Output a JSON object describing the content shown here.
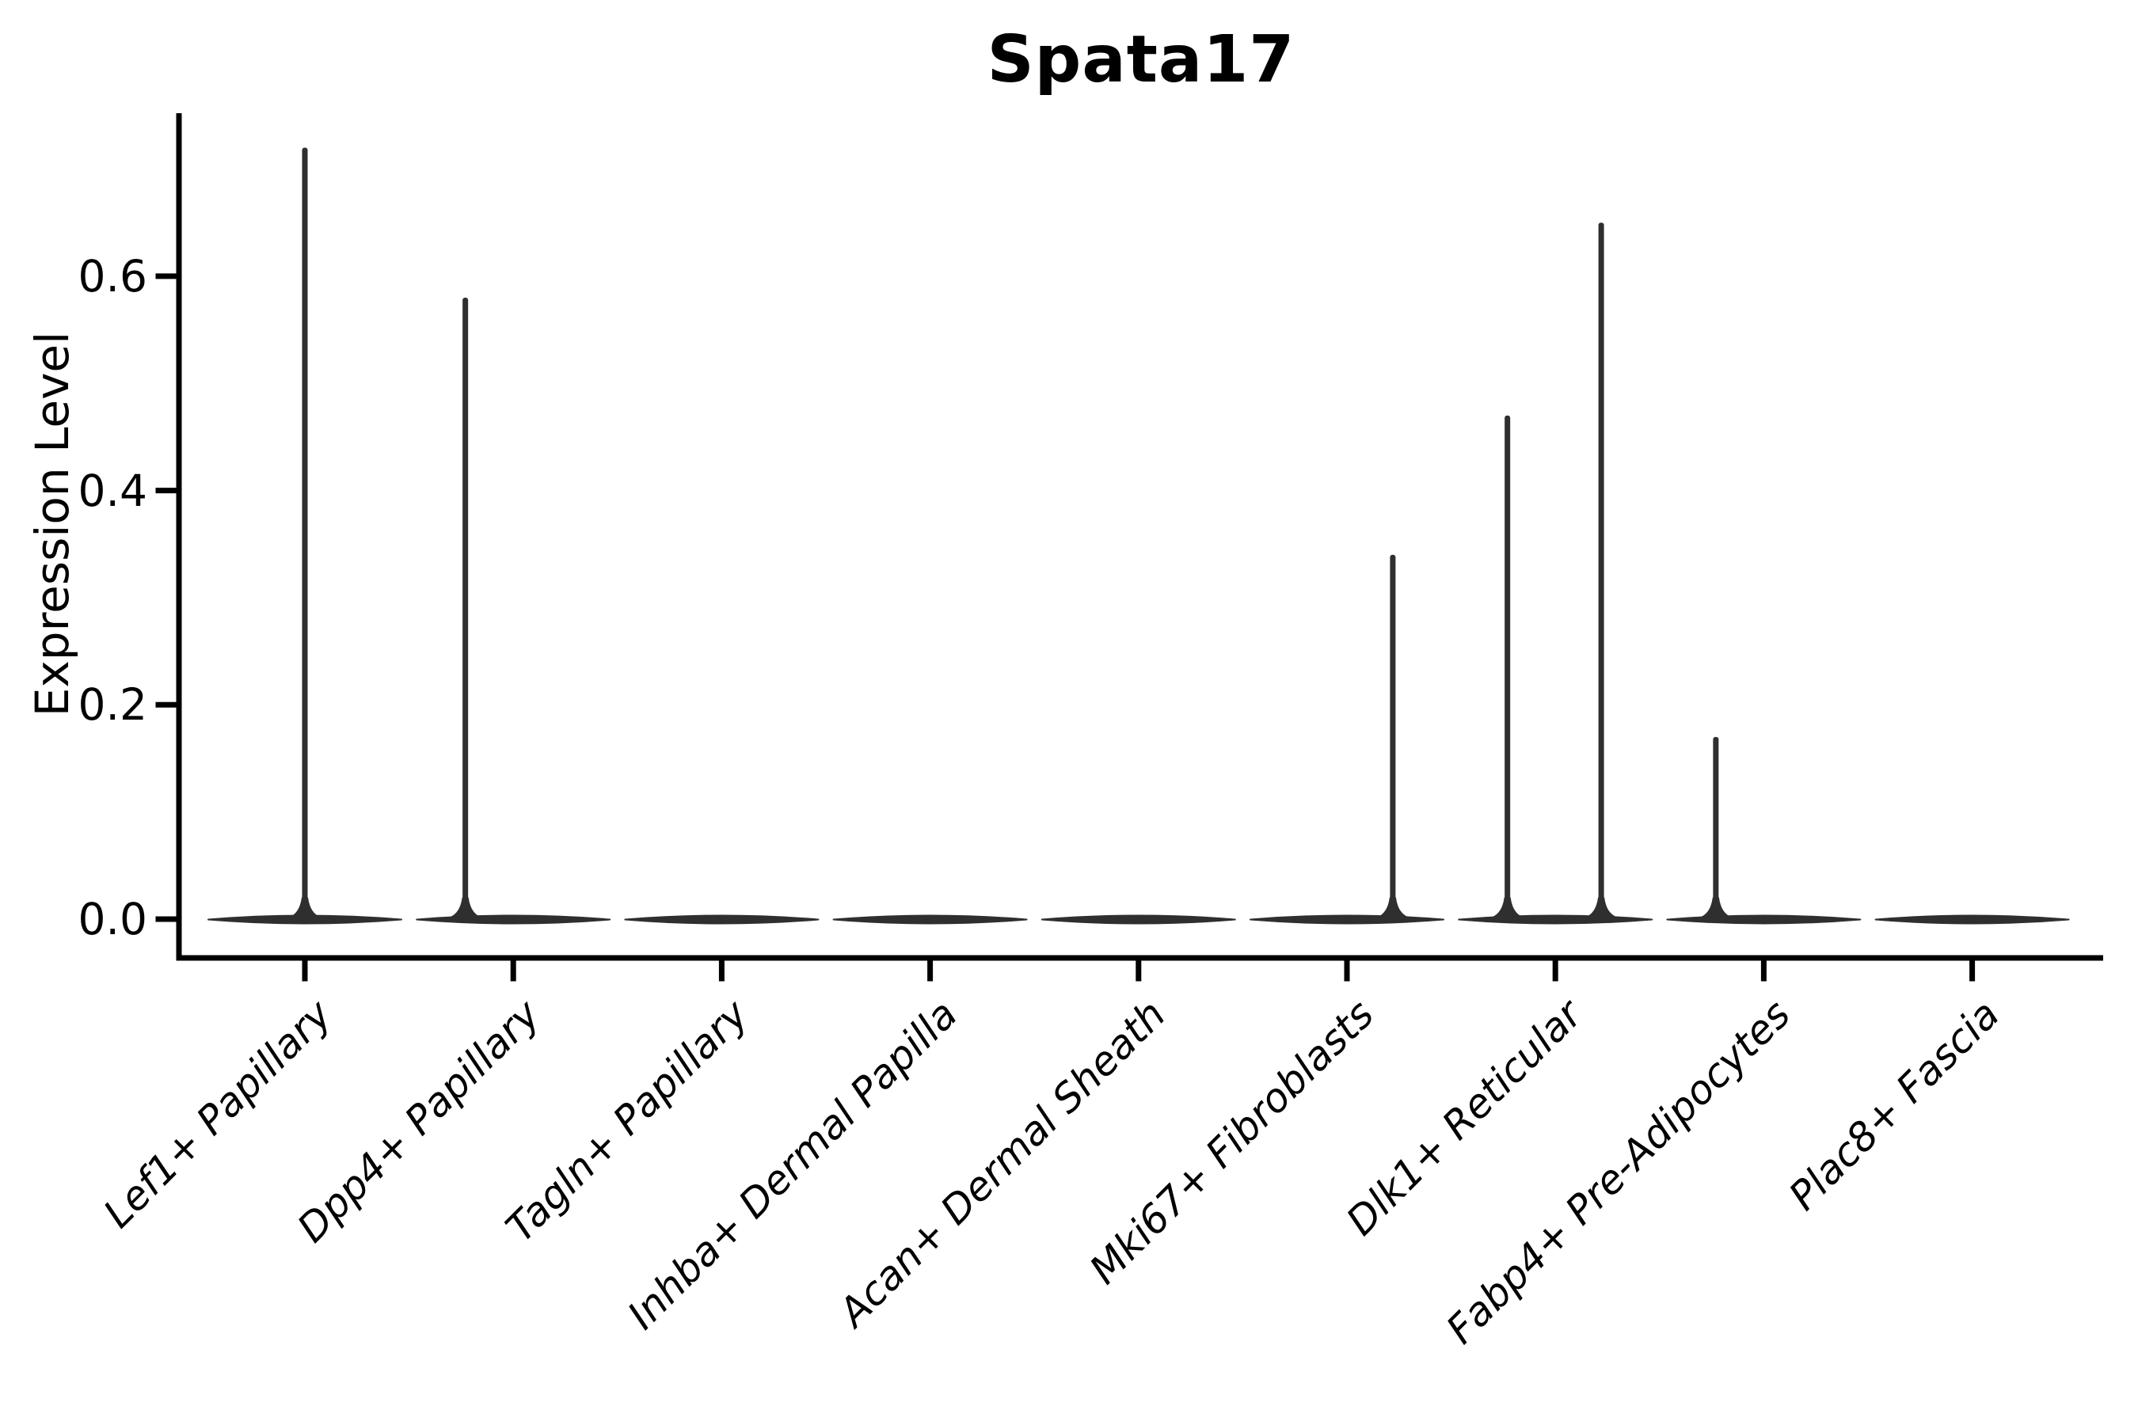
{
  "title": "Spata17",
  "colors": {
    "violin_fill": "#2f2f2f",
    "axis": "#000000",
    "text": "#000000",
    "background": "#ffffff"
  },
  "chart_data": {
    "type": "violin",
    "title": "Spata17",
    "xlabel": "",
    "ylabel": "Expression Level",
    "ylim": [
      -0.036,
      0.75
    ],
    "yticks": [
      0.0,
      0.2,
      0.4,
      0.6
    ],
    "ytick_labels": [
      "0.0",
      "0.2",
      "0.4",
      "0.6"
    ],
    "grid": false,
    "legend": null,
    "categories": [
      "Lef1+ Papillary",
      "Dpp4+ Papillary",
      "Tagln+ Papillary",
      "Inhba+ Dermal Papilla",
      "Acan+ Dermal Sheath",
      "Mki67+ Fibroblasts",
      "Dlk1+ Reticular",
      "Fabp4+ Pre-Adipocytes",
      "Plac8+ Fascia"
    ],
    "violins": [
      {
        "category": "Lef1+ Papillary",
        "baseline_value": 0.0,
        "max_expression": 0.72,
        "spikes": [
          {
            "x_offset_frac": 0.0,
            "max": 0.72
          }
        ]
      },
      {
        "category": "Dpp4+ Papillary",
        "baseline_value": 0.0,
        "max_expression": 0.58,
        "spikes": [
          {
            "x_offset_frac": -0.23,
            "max": 0.58
          }
        ]
      },
      {
        "category": "Tagln+ Papillary",
        "baseline_value": 0.0,
        "max_expression": 0.0,
        "spikes": []
      },
      {
        "category": "Inhba+ Dermal Papilla",
        "baseline_value": 0.0,
        "max_expression": 0.0,
        "spikes": []
      },
      {
        "category": "Acan+ Dermal Sheath",
        "baseline_value": 0.0,
        "max_expression": 0.0,
        "spikes": []
      },
      {
        "category": "Mki67+ Fibroblasts",
        "baseline_value": 0.0,
        "max_expression": 0.34,
        "spikes": [
          {
            "x_offset_frac": 0.22,
            "max": 0.34
          }
        ]
      },
      {
        "category": "Dlk1+ Reticular",
        "baseline_value": 0.0,
        "max_expression": 0.65,
        "spikes": [
          {
            "x_offset_frac": -0.23,
            "max": 0.47
          },
          {
            "x_offset_frac": 0.22,
            "max": 0.65
          }
        ]
      },
      {
        "category": "Fabp4+ Pre-Adipocytes",
        "baseline_value": 0.0,
        "max_expression": 0.17,
        "spikes": [
          {
            "x_offset_frac": -0.23,
            "max": 0.17
          }
        ]
      },
      {
        "category": "Plac8+ Fascia",
        "baseline_value": 0.0,
        "max_expression": 0.0,
        "spikes": []
      }
    ]
  }
}
